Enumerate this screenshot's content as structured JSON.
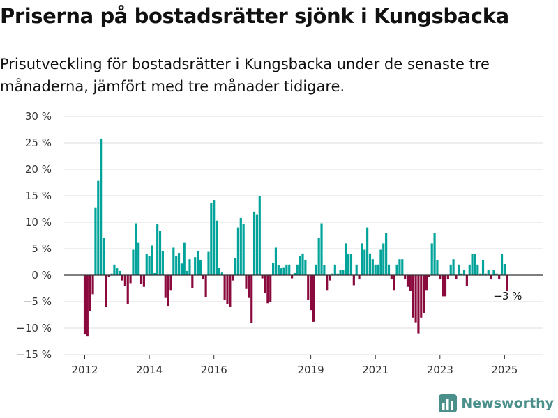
{
  "header": {
    "title": "Priserna på bostadsrätter sjönk i Kungsbacka",
    "subtitle": "Prisutveckling för bostadsrätter i Kungsbacka under de senaste tre månaderna, jämfört med tre månader tidigare."
  },
  "brand": {
    "name": "Newsworthy",
    "logo_icon": "bar-chart-logo-icon"
  },
  "chart_data": {
    "type": "bar",
    "title": "Priserna på bostadsrätter sjönk i Kungsbacka",
    "subtitle": "Prisutveckling för bostadsrätter i Kungsbacka under de senaste tre månaderna, jämfört med tre månader tidigare.",
    "unit": "%",
    "ylim": [
      -15,
      30
    ],
    "yticks": [
      -15,
      -10,
      -5,
      0,
      5,
      10,
      15,
      20,
      25,
      30
    ],
    "ytick_labels": [
      "−15 %",
      "−10 %",
      "−5 %",
      "0 %",
      "5 %",
      "10 %",
      "15 %",
      "20 %",
      "25 %",
      "30 %"
    ],
    "xticks": [
      2012,
      2014,
      2016,
      2019,
      2021,
      2023,
      2025
    ],
    "x_start": "2012-01",
    "grid": true,
    "colors": {
      "positive": "#00a39a",
      "negative": "#8b0a3e",
      "grid": "#dddddd",
      "axis": "#333333"
    },
    "annotation": "−3 %",
    "values": [
      -11.2,
      -11.6,
      -6.8,
      -3.6,
      12.8,
      17.8,
      25.8,
      7.1,
      -6.0,
      -0.3,
      0.3,
      2.0,
      1.3,
      0.8,
      -1.0,
      -2.0,
      -5.5,
      -1.5,
      4.8,
      9.8,
      6.1,
      -1.6,
      -2.2,
      4.0,
      3.6,
      5.6,
      0.4,
      9.6,
      8.4,
      4.6,
      -4.3,
      -5.8,
      -2.8,
      5.2,
      3.6,
      4.2,
      2.2,
      6.1,
      0.8,
      3.0,
      -2.4,
      3.4,
      4.6,
      2.9,
      -0.8,
      -4.2,
      4.4,
      13.6,
      14.2,
      10.3,
      1.4,
      0.5,
      -4.7,
      -5.4,
      -6.0,
      -1.0,
      3.2,
      9.0,
      10.8,
      9.6,
      -2.6,
      -4.3,
      -9.0,
      12.0,
      11.5,
      14.9,
      -0.6,
      -3.3,
      -5.3,
      -5.1,
      2.3,
      5.2,
      1.9,
      1.3,
      1.5,
      2.0,
      2.0,
      -0.6,
      0.4,
      2.0,
      3.6,
      4.1,
      2.9,
      -4.6,
      -6.6,
      -8.8,
      2.0,
      7.0,
      9.8,
      1.9,
      -2.8,
      -1.0,
      0.3,
      2.0,
      0.3,
      1.0,
      1.0,
      6.0,
      4.0,
      4.0,
      -1.9,
      2.0,
      -0.8,
      6.0,
      4.8,
      9.0,
      4.1,
      3.0,
      2.0,
      2.0,
      4.8,
      6.0,
      8.0,
      2.0,
      -0.8,
      -2.8,
      2.0,
      3.0,
      3.0,
      -0.8,
      -2.2,
      -3.0,
      -8.0,
      -8.9,
      -11.0,
      -8.0,
      -7.1,
      -2.8,
      -0.3,
      6.0,
      8.0,
      2.9,
      -0.8,
      -4.0,
      -4.0,
      -0.8,
      2.0,
      3.0,
      -0.8,
      2.0,
      0.3,
      1.0,
      -2.0,
      2.0,
      4.0,
      4.0,
      2.0,
      0.3,
      2.9,
      0.3,
      1.0,
      -0.8,
      1.0,
      0.3,
      -0.8,
      4.0,
      2.1,
      -3.0
    ]
  }
}
